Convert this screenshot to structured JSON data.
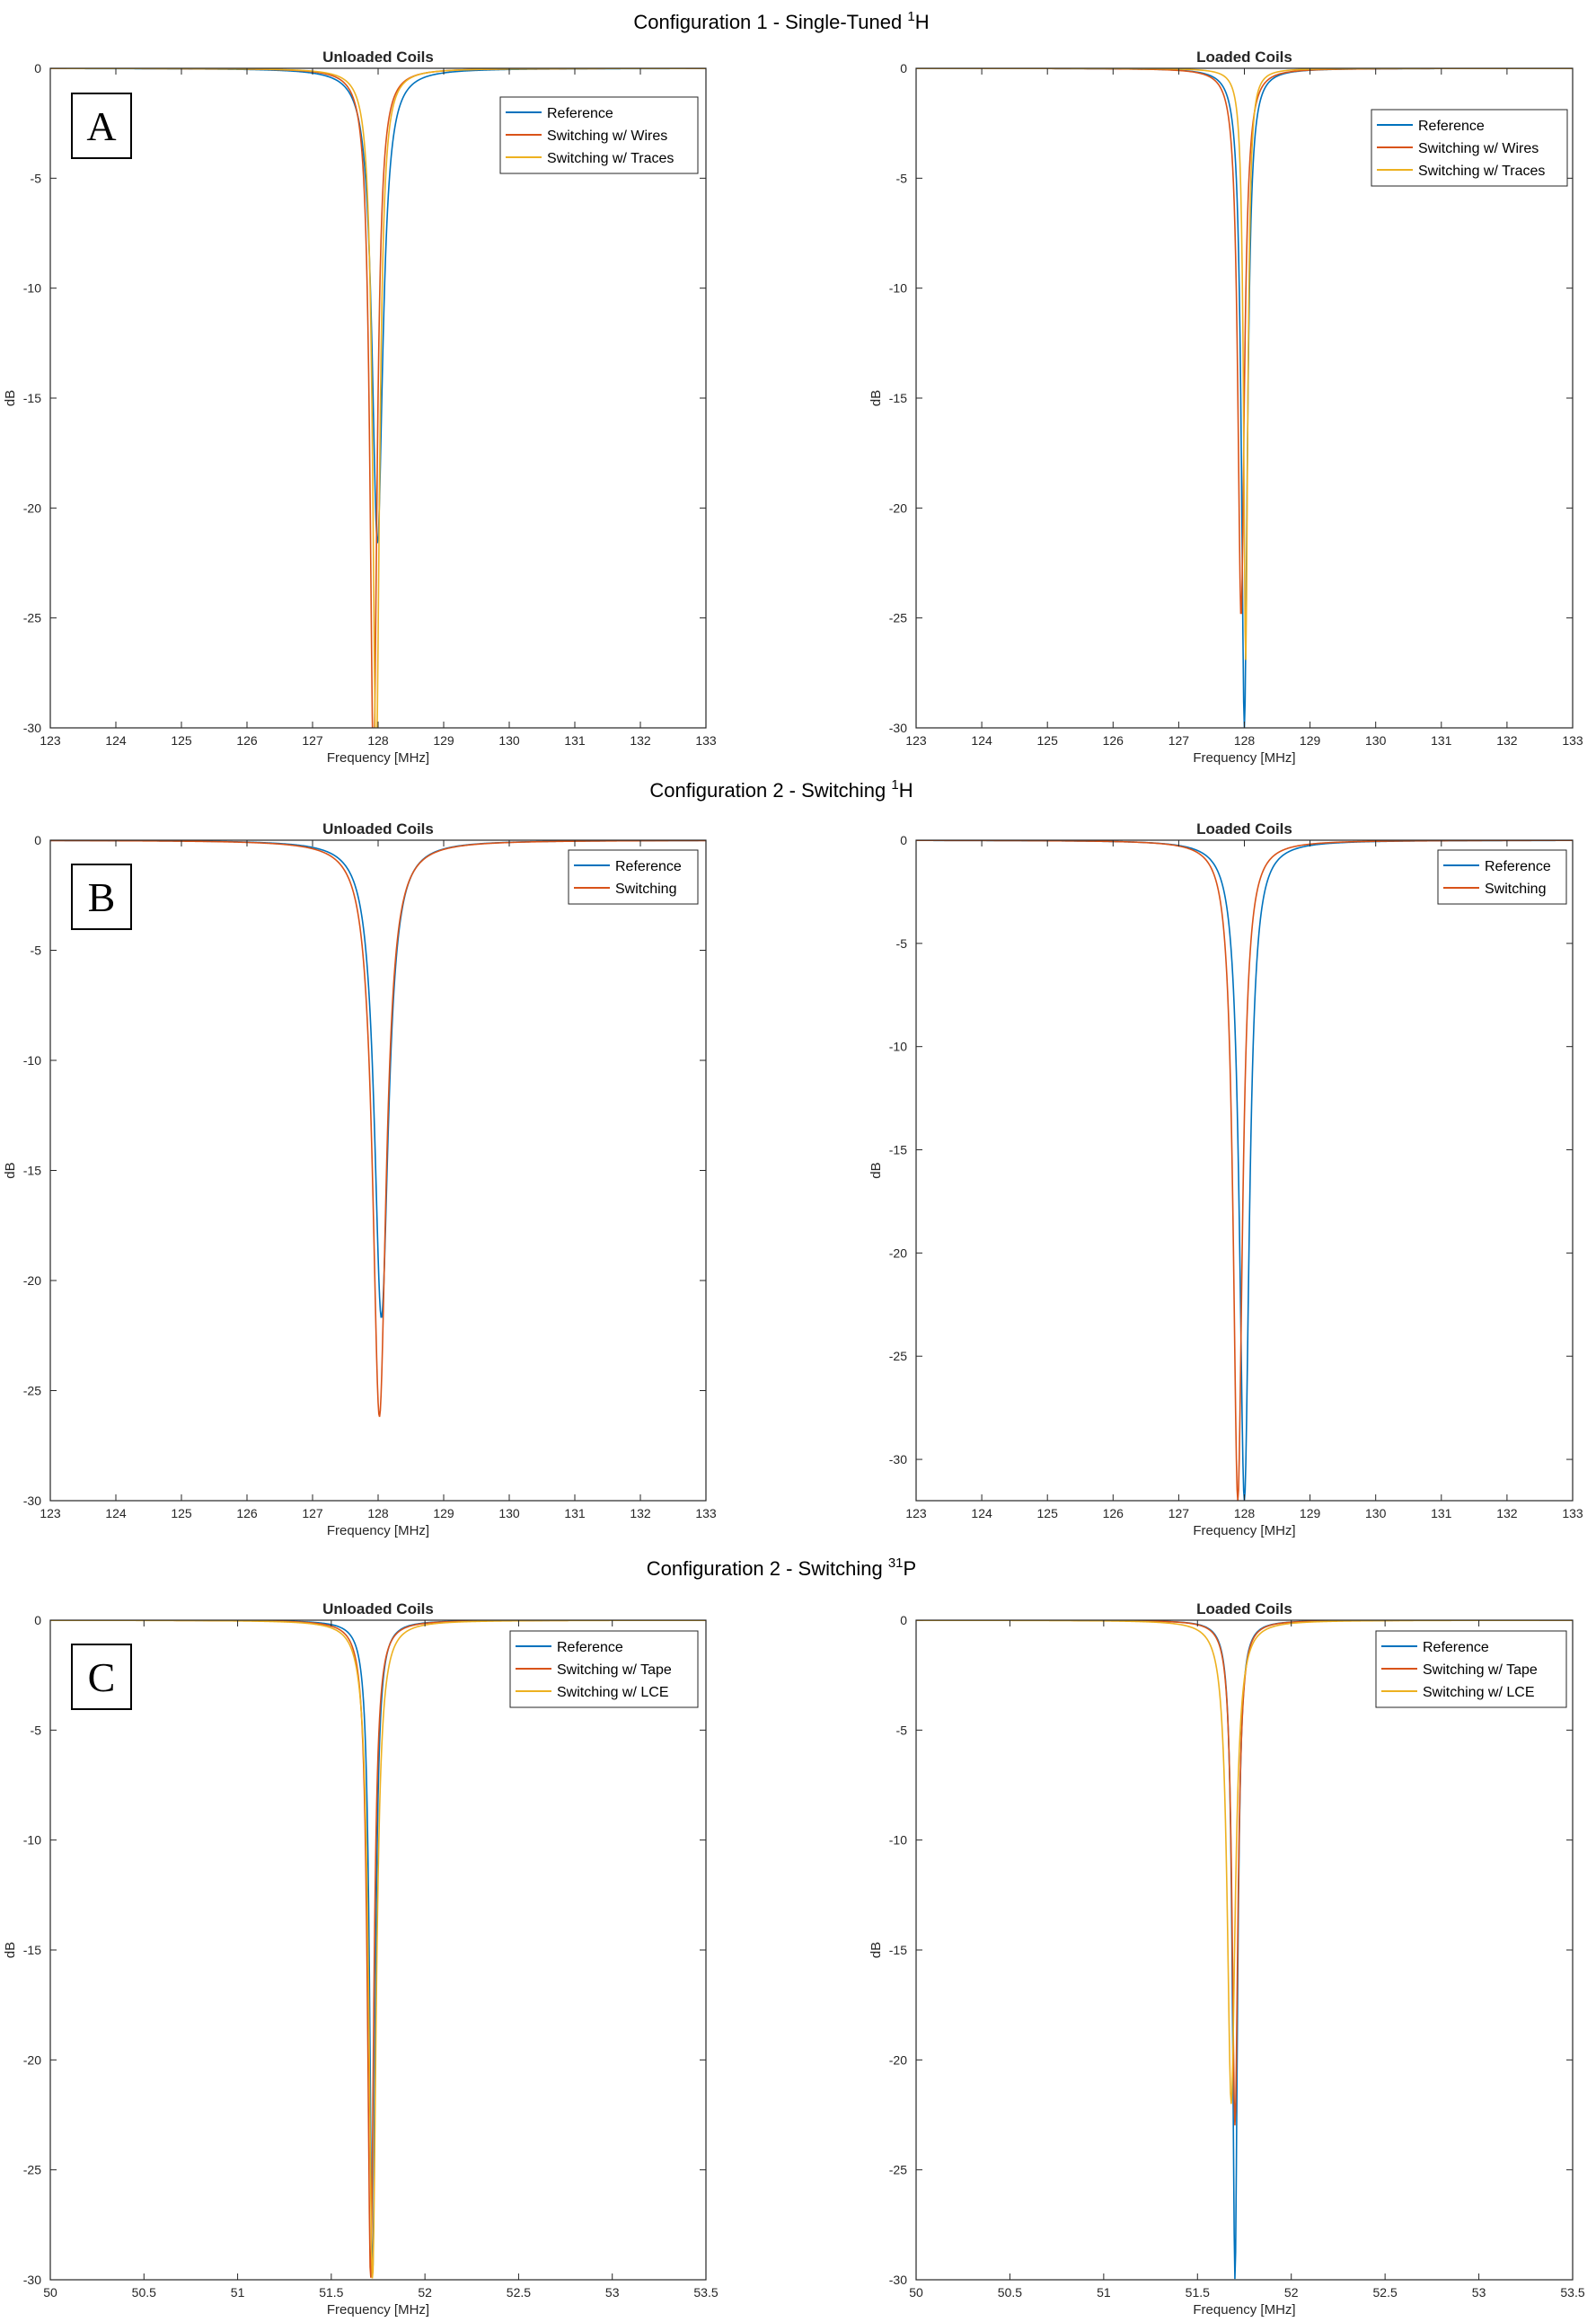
{
  "figure": {
    "row_titles": [
      {
        "prefix": "Configuration 1 - Single-Tuned ",
        "sup": "1",
        "suffix": "H"
      },
      {
        "prefix": "Configuration 2 - Switching ",
        "sup": "1",
        "suffix": "H"
      },
      {
        "prefix": "Configuration 2 - Switching ",
        "sup": "31",
        "suffix": "P"
      }
    ],
    "panel_letters": [
      "A",
      "B",
      "C"
    ]
  },
  "chart_data": [
    {
      "type": "line",
      "title": "Unloaded Coils",
      "xlabel": "Frequency [MHz]",
      "ylabel": "dB",
      "xlim": [
        123,
        133
      ],
      "ylim": [
        -30,
        0
      ],
      "xticks": [
        "123",
        "124",
        "125",
        "126",
        "127",
        "128",
        "129",
        "130",
        "131",
        "132",
        "133"
      ],
      "yticks": [
        "0",
        "-5",
        "-10",
        "-15",
        "-20",
        "-25",
        "-30"
      ],
      "legend_position": "top-right",
      "grid": false,
      "series": [
        {
          "name": "Reference",
          "color": "#0072bd",
          "f0": 127.99,
          "min": -21.6,
          "hw": 0.1
        },
        {
          "name": "Switching w/ Wires",
          "color": "#d95319",
          "f0": 127.93,
          "min": -32,
          "hw": 0.065
        },
        {
          "name": "Switching w/ Traces",
          "color": "#edb120",
          "f0": 127.97,
          "min": -32,
          "hw": 0.062
        }
      ]
    },
    {
      "type": "line",
      "title": "Loaded Coils",
      "xlabel": "Frequency [MHz]",
      "ylabel": "dB",
      "xlim": [
        123,
        133
      ],
      "ylim": [
        -30,
        0
      ],
      "xticks": [
        "123",
        "124",
        "125",
        "126",
        "127",
        "128",
        "129",
        "130",
        "131",
        "132",
        "133"
      ],
      "yticks": [
        "0",
        "-5",
        "-10",
        "-15",
        "-20",
        "-25",
        "-30"
      ],
      "legend_position": "top-right",
      "grid": false,
      "series": [
        {
          "name": "Reference",
          "color": "#0072bd",
          "f0": 128.0,
          "min": -30,
          "hw": 0.055
        },
        {
          "name": "Switching w/ Wires",
          "color": "#d95319",
          "f0": 127.95,
          "min": -25,
          "hw": 0.06
        },
        {
          "name": "Switching w/ Traces",
          "color": "#edb120",
          "f0": 128.02,
          "min": -27,
          "hw": 0.038
        }
      ]
    },
    {
      "type": "line",
      "title": "Unloaded Coils",
      "xlabel": "Frequency [MHz]",
      "ylabel": "dB",
      "xlim": [
        123,
        133
      ],
      "ylim": [
        -30,
        0
      ],
      "xticks": [
        "123",
        "124",
        "125",
        "126",
        "127",
        "128",
        "129",
        "130",
        "131",
        "132",
        "133"
      ],
      "yticks": [
        "0",
        "-5",
        "-10",
        "-15",
        "-20",
        "-25",
        "-30"
      ],
      "legend_position": "top-right",
      "grid": false,
      "series": [
        {
          "name": "Reference",
          "color": "#0072bd",
          "f0": 128.05,
          "min": -21.7,
          "hw": 0.13
        },
        {
          "name": "Switching",
          "color": "#d95319",
          "f0": 128.02,
          "min": -26.2,
          "hw": 0.125
        }
      ]
    },
    {
      "type": "line",
      "title": "Loaded Coils",
      "xlabel": "Frequency [MHz]",
      "ylabel": "dB",
      "xlim": [
        123,
        133
      ],
      "ylim": [
        -32,
        0
      ],
      "xticks": [
        "123",
        "124",
        "125",
        "126",
        "127",
        "128",
        "129",
        "130",
        "131",
        "132",
        "133"
      ],
      "yticks": [
        "0",
        "-5",
        "-10",
        "-15",
        "-20",
        "-25",
        "-30"
      ],
      "legend_position": "top-right",
      "grid": false,
      "series": [
        {
          "name": "Reference",
          "color": "#0072bd",
          "f0": 128.0,
          "min": -32,
          "hw": 0.09
        },
        {
          "name": "Switching",
          "color": "#d95319",
          "f0": 127.9,
          "min": -32,
          "hw": 0.085
        }
      ]
    },
    {
      "type": "line",
      "title": "Unloaded Coils",
      "xlabel": "Frequency [MHz]",
      "ylabel": "dB",
      "xlim": [
        50,
        53.5
      ],
      "ylim": [
        -30,
        0
      ],
      "xticks": [
        "50",
        "50.5",
        "51",
        "51.5",
        "52",
        "52.5",
        "53",
        "53.5"
      ],
      "yticks": [
        "0",
        "-5",
        "-10",
        "-15",
        "-20",
        "-25",
        "-30"
      ],
      "legend_position": "top-right",
      "grid": false,
      "series": [
        {
          "name": "Reference",
          "color": "#0072bd",
          "f0": 51.72,
          "min": -30,
          "hw": 0.018
        },
        {
          "name": "Switching w/ Tape",
          "color": "#d95319",
          "f0": 51.71,
          "min": -30,
          "hw": 0.02
        },
        {
          "name": "Switching w/ LCE",
          "color": "#edb120",
          "f0": 51.72,
          "min": -30,
          "hw": 0.024
        }
      ]
    },
    {
      "type": "line",
      "title": "Loaded Coils",
      "xlabel": "Frequency [MHz]",
      "ylabel": "dB",
      "xlim": [
        50,
        53.5
      ],
      "ylim": [
        -30,
        0
      ],
      "xticks": [
        "50",
        "50.5",
        "51",
        "51.5",
        "52",
        "52.5",
        "53",
        "53.5"
      ],
      "yticks": [
        "0",
        "-5",
        "-10",
        "-15",
        "-20",
        "-25",
        "-30"
      ],
      "legend_position": "top-right",
      "grid": false,
      "series": [
        {
          "name": "Reference",
          "color": "#0072bd",
          "f0": 51.7,
          "min": -30,
          "hw": 0.016
        },
        {
          "name": "Switching w/ Tape",
          "color": "#d95319",
          "f0": 51.7,
          "min": -23,
          "hw": 0.019
        },
        {
          "name": "Switching w/ LCE",
          "color": "#edb120",
          "f0": 51.68,
          "min": -22,
          "hw": 0.026
        }
      ]
    }
  ]
}
